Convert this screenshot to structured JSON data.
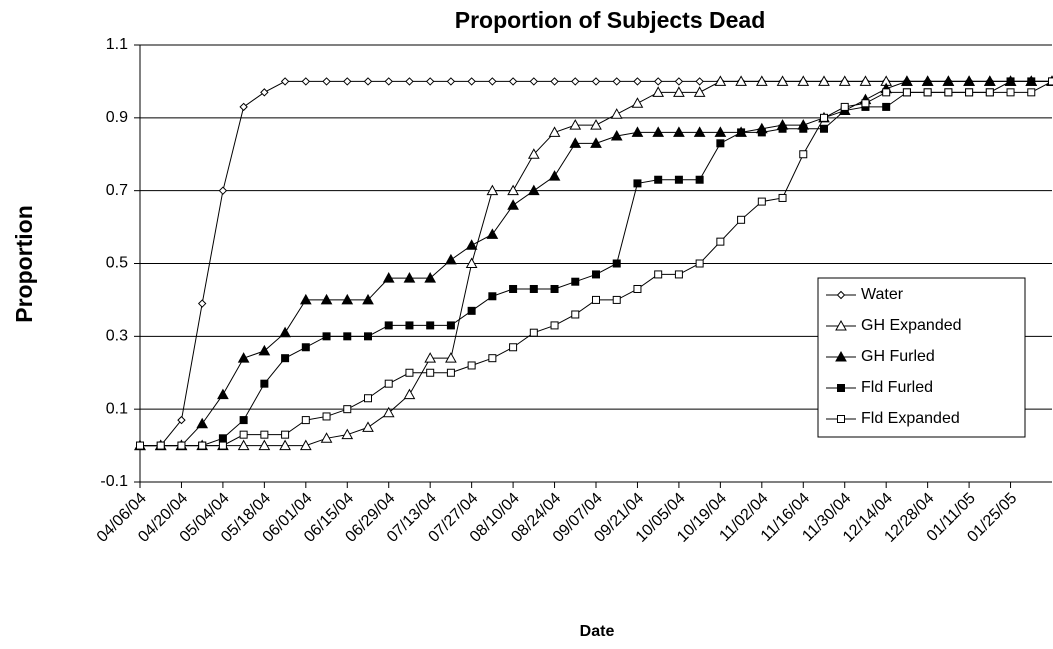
{
  "chart_data": {
    "type": "line",
    "title": "Proportion of Subjects Dead",
    "x_label": "Date",
    "y_label": "Proportion",
    "x": [
      "2004-04-06",
      "2004-04-13",
      "2004-04-20",
      "2004-04-27",
      "2004-05-04",
      "2004-05-11",
      "2004-05-18",
      "2004-05-25",
      "2004-06-01",
      "2004-06-08",
      "2004-06-15",
      "2004-06-22",
      "2004-06-29",
      "2004-07-06",
      "2004-07-13",
      "2004-07-20",
      "2004-07-27",
      "2004-08-03",
      "2004-08-10",
      "2004-08-17",
      "2004-08-24",
      "2004-08-31",
      "2004-09-07",
      "2004-09-14",
      "2004-09-21",
      "2004-09-28",
      "2004-10-05",
      "2004-10-12",
      "2004-10-19",
      "2004-10-26",
      "2004-11-02",
      "2004-11-09",
      "2004-11-16",
      "2004-11-23",
      "2004-11-30",
      "2004-12-07",
      "2004-12-14",
      "2004-12-21",
      "2004-12-28",
      "2005-01-04",
      "2005-01-11",
      "2005-01-18",
      "2005-01-25",
      "2005-02-01",
      "2005-02-08"
    ],
    "xlim": [
      "2004-04-06",
      "2005-02-08"
    ],
    "xticks": [
      {
        "value": "2004-04-06",
        "label": "04/06/04"
      },
      {
        "value": "2004-04-20",
        "label": "04/20/04"
      },
      {
        "value": "2004-05-04",
        "label": "05/04/04"
      },
      {
        "value": "2004-05-18",
        "label": "05/18/04"
      },
      {
        "value": "2004-06-01",
        "label": "06/01/04"
      },
      {
        "value": "2004-06-15",
        "label": "06/15/04"
      },
      {
        "value": "2004-06-29",
        "label": "06/29/04"
      },
      {
        "value": "2004-07-13",
        "label": "07/13/04"
      },
      {
        "value": "2004-07-27",
        "label": "07/27/04"
      },
      {
        "value": "2004-08-10",
        "label": "08/10/04"
      },
      {
        "value": "2004-08-24",
        "label": "08/24/04"
      },
      {
        "value": "2004-09-07",
        "label": "09/07/04"
      },
      {
        "value": "2004-09-21",
        "label": "09/21/04"
      },
      {
        "value": "2004-10-05",
        "label": "10/05/04"
      },
      {
        "value": "2004-10-19",
        "label": "10/19/04"
      },
      {
        "value": "2004-11-02",
        "label": "11/02/04"
      },
      {
        "value": "2004-11-16",
        "label": "11/16/04"
      },
      {
        "value": "2004-11-30",
        "label": "11/30/04"
      },
      {
        "value": "2004-12-14",
        "label": "12/14/04"
      },
      {
        "value": "2004-12-28",
        "label": "12/28/04"
      },
      {
        "value": "2005-01-11",
        "label": "01/11/05"
      },
      {
        "value": "2005-01-25",
        "label": "01/25/05"
      }
    ],
    "ylim": [
      -0.1,
      1.1
    ],
    "yticks": [
      -0.1,
      0.1,
      0.3,
      0.5,
      0.7,
      0.9,
      1.1
    ],
    "grid": true,
    "legend": "right",
    "series": [
      {
        "name": "Water",
        "color": "#000000",
        "marker": "diamond-open",
        "values": [
          0,
          0,
          0.07,
          0.39,
          0.7,
          0.93,
          0.97,
          1,
          1,
          1,
          1,
          1,
          1,
          1,
          1,
          1,
          1,
          1,
          1,
          1,
          1,
          1,
          1,
          1,
          1,
          1,
          1,
          1,
          1,
          1,
          1,
          1,
          1,
          1,
          1,
          1,
          1,
          1,
          1,
          1,
          1,
          1,
          1,
          1,
          1
        ]
      },
      {
        "name": "GH Expanded",
        "color": "#000000",
        "marker": "triangle-open",
        "values": [
          0,
          0,
          0,
          0,
          0,
          0,
          0,
          0,
          0,
          0.02,
          0.03,
          0.05,
          0.09,
          0.14,
          0.24,
          0.24,
          0.5,
          0.7,
          0.7,
          0.8,
          0.86,
          0.88,
          0.88,
          0.91,
          0.94,
          0.97,
          0.97,
          0.97,
          1,
          1,
          1,
          1,
          1,
          1,
          1,
          1,
          1,
          1,
          1,
          1,
          1,
          1,
          1,
          1,
          1
        ]
      },
      {
        "name": "GH Furled",
        "color": "#000000",
        "marker": "triangle-filled",
        "values": [
          0,
          0,
          0,
          0.06,
          0.14,
          0.24,
          0.26,
          0.31,
          0.4,
          0.4,
          0.4,
          0.4,
          0.46,
          0.46,
          0.46,
          0.51,
          0.55,
          0.58,
          0.66,
          0.7,
          0.74,
          0.83,
          0.83,
          0.85,
          0.86,
          0.86,
          0.86,
          0.86,
          0.86,
          0.86,
          0.87,
          0.88,
          0.88,
          0.9,
          0.92,
          0.95,
          0.98,
          1,
          1,
          1,
          1,
          1,
          1,
          1,
          1
        ]
      },
      {
        "name": "Fld Furled",
        "color": "#000000",
        "marker": "square-filled",
        "values": [
          0,
          0,
          0,
          0,
          0.02,
          0.07,
          0.17,
          0.24,
          0.27,
          0.3,
          0.3,
          0.3,
          0.33,
          0.33,
          0.33,
          0.33,
          0.37,
          0.41,
          0.43,
          0.43,
          0.43,
          0.45,
          0.47,
          0.5,
          0.72,
          0.73,
          0.73,
          0.73,
          0.83,
          0.86,
          0.86,
          0.87,
          0.87,
          0.87,
          0.92,
          0.93,
          0.93,
          0.97,
          0.97,
          0.97,
          0.97,
          0.97,
          1,
          1,
          1
        ]
      },
      {
        "name": "Fld Expanded",
        "color": "#000000",
        "marker": "square-open",
        "values": [
          0,
          0,
          0,
          0,
          0,
          0.03,
          0.03,
          0.03,
          0.07,
          0.08,
          0.1,
          0.13,
          0.17,
          0.2,
          0.2,
          0.2,
          0.22,
          0.24,
          0.27,
          0.31,
          0.33,
          0.36,
          0.4,
          0.4,
          0.43,
          0.47,
          0.47,
          0.5,
          0.56,
          0.62,
          0.67,
          0.68,
          0.8,
          0.9,
          0.93,
          0.94,
          0.97,
          0.97,
          0.97,
          0.97,
          0.97,
          0.97,
          0.97,
          0.97,
          1
        ]
      }
    ]
  }
}
